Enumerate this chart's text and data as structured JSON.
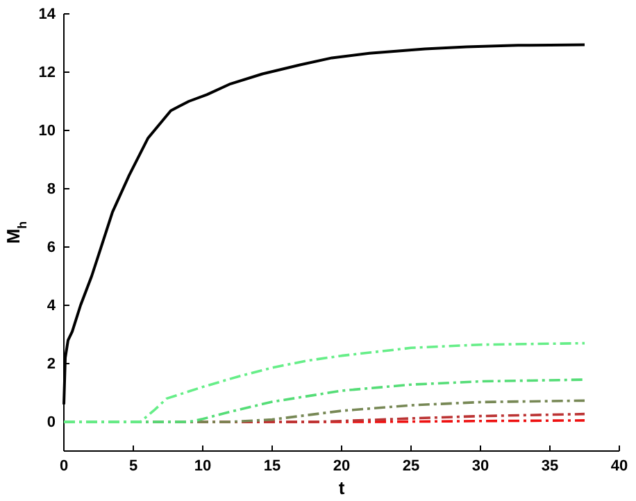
{
  "chart_data": {
    "type": "line",
    "xlabel": "t",
    "ylabel": "M$_{h}$",
    "xlim": [
      0,
      40
    ],
    "ylim": [
      -1,
      14
    ],
    "xticks": [
      0,
      5,
      10,
      15,
      20,
      25,
      30,
      35,
      40
    ],
    "yticks": [
      0,
      2,
      4,
      6,
      8,
      10,
      12,
      14
    ],
    "grid": false,
    "marker": "none",
    "series": [
      {
        "color": "#000000",
        "line_style": "solid",
        "x": [
          0,
          0.1,
          0.3,
          0.6,
          1.2,
          2,
          2.65,
          3.5,
          4.7,
          6.05,
          7.7,
          9,
          10.3,
          12,
          14.3,
          17,
          19.3,
          22,
          26,
          29,
          32.7,
          35,
          37.5
        ],
        "values": [
          0.6,
          2.2,
          2.8,
          3.1,
          4,
          5,
          5.95,
          7.2,
          8.46,
          9.73,
          10.68,
          11,
          11.23,
          11.6,
          11.94,
          12.25,
          12.49,
          12.65,
          12.8,
          12.87,
          12.92,
          12.93,
          12.94
        ]
      },
      {
        "color": "#66ee88",
        "line_style": "dashed",
        "x": [
          0,
          5.5,
          6.5,
          7.4,
          10,
          12.5,
          15,
          17.5,
          20,
          25,
          30,
          37.5
        ],
        "values": [
          0,
          0,
          0.4,
          0.8,
          1.2,
          1.55,
          1.86,
          2.1,
          2.27,
          2.54,
          2.65,
          2.7
        ]
      },
      {
        "color": "#55dd77",
        "line_style": "dashed",
        "x": [
          0,
          9,
          10,
          12,
          15,
          20,
          25,
          30,
          37.5
        ],
        "values": [
          0,
          0,
          0.1,
          0.35,
          0.69,
          1.07,
          1.28,
          1.39,
          1.45
        ]
      },
      {
        "color": "#778855",
        "line_style": "dashed",
        "x": [
          0,
          12,
          15,
          20,
          25,
          30,
          37.5
        ],
        "values": [
          0,
          0,
          0.08,
          0.38,
          0.57,
          0.68,
          0.73
        ]
      },
      {
        "color": "#bb3333",
        "line_style": "dashed",
        "x": [
          0,
          18,
          20,
          25,
          30,
          37.5
        ],
        "values": [
          0,
          0,
          0.03,
          0.12,
          0.2,
          0.27
        ]
      },
      {
        "color": "#ee1111",
        "line_style": "dashed",
        "x": [
          0,
          22,
          25,
          30,
          37.5
        ],
        "values": [
          0,
          0,
          0.01,
          0.03,
          0.05
        ]
      }
    ]
  }
}
